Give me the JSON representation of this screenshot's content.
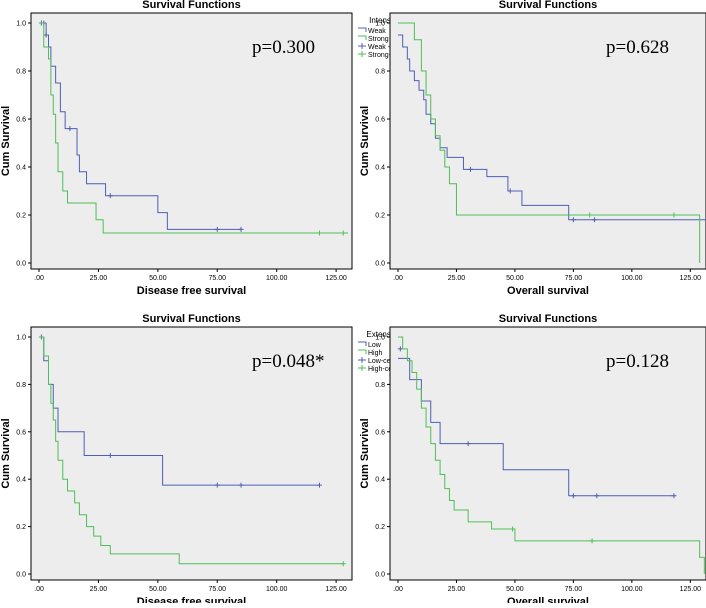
{
  "colors": {
    "series1": "#4f5fb5",
    "series2": "#4fbf57",
    "plot_bg": "#ededed",
    "axis": "#000000"
  },
  "chart_data": [
    {
      "type": "line",
      "title": "Survival Functions",
      "xlabel": "Disease free survival",
      "ylabel": "Cum Survival",
      "xlim": [
        0,
        130
      ],
      "ylim": [
        0,
        1.0
      ],
      "xticks": [
        ".00",
        "25.00",
        "50.00",
        "75.00",
        "100.00",
        "125.00"
      ],
      "yticks": [
        "0.0",
        "0.2",
        "0.4",
        "0.6",
        "0.8",
        "1.0"
      ],
      "annotation": "p=0.300",
      "legend_title": "Intensity",
      "legend": [
        "Weak",
        "Strong",
        "Weak -censored",
        "Strong-censored"
      ],
      "series": [
        {
          "name": "Weak",
          "color": "#4f5fb5",
          "steps": [
            [
              0,
              1.0
            ],
            [
              3,
              0.95
            ],
            [
              4,
              0.9
            ],
            [
              5,
              0.82
            ],
            [
              7,
              0.75
            ],
            [
              9,
              0.63
            ],
            [
              11,
              0.56
            ],
            [
              16,
              0.45
            ],
            [
              17,
              0.38
            ],
            [
              20,
              0.33
            ],
            [
              28,
              0.28
            ],
            [
              37,
              0.28
            ],
            [
              50,
              0.21
            ],
            [
              54,
              0.14
            ],
            [
              85,
              0.14
            ]
          ],
          "censored": [
            [
              1,
              1.0
            ],
            [
              2,
              1.0
            ],
            [
              3,
              0.95
            ],
            [
              13,
              0.56
            ],
            [
              30,
              0.28
            ],
            [
              75,
              0.14
            ],
            [
              85,
              0.14
            ]
          ]
        },
        {
          "name": "Strong",
          "color": "#4fbf57",
          "steps": [
            [
              0,
              1.0
            ],
            [
              2,
              0.9
            ],
            [
              4,
              0.85
            ],
            [
              5,
              0.7
            ],
            [
              6,
              0.62
            ],
            [
              7,
              0.5
            ],
            [
              8,
              0.38
            ],
            [
              10,
              0.3
            ],
            [
              12,
              0.25
            ],
            [
              24,
              0.18
            ],
            [
              27,
              0.125
            ],
            [
              130,
              0.125
            ]
          ],
          "censored": [
            [
              118,
              0.125
            ],
            [
              128,
              0.125
            ]
          ]
        }
      ]
    },
    {
      "type": "line",
      "title": "Survival Functions",
      "xlabel": "Overall survival",
      "ylabel": "Cum Survival",
      "xlim": [
        0,
        130
      ],
      "ylim": [
        0,
        1.0
      ],
      "xticks": [
        ".00",
        "25.00",
        "50.00",
        "75.00",
        "100.00",
        "125.00"
      ],
      "yticks": [
        "0.0",
        "0.2",
        "0.4",
        "0.6",
        "0.8",
        "1.0"
      ],
      "annotation": "p=0.628",
      "legend_title": "Intensity",
      "legend": [
        "Weak",
        "Strong",
        "Weak -censored",
        "Strong-censored"
      ],
      "series": [
        {
          "name": "Weak",
          "color": "#4f5fb5",
          "steps": [
            [
              0,
              0.95
            ],
            [
              2,
              0.9
            ],
            [
              4,
              0.85
            ],
            [
              5,
              0.8
            ],
            [
              7,
              0.76
            ],
            [
              9,
              0.72
            ],
            [
              11,
              0.68
            ],
            [
              12,
              0.62
            ],
            [
              14,
              0.58
            ],
            [
              16,
              0.52
            ],
            [
              18,
              0.48
            ],
            [
              21,
              0.44
            ],
            [
              28,
              0.39
            ],
            [
              38,
              0.36
            ],
            [
              47,
              0.3
            ],
            [
              53,
              0.24
            ],
            [
              73,
              0.18
            ],
            [
              132,
              0.18
            ],
            [
              132,
              0.0
            ]
          ],
          "censored": [
            [
              31,
              0.39
            ],
            [
              48,
              0.3
            ],
            [
              75,
              0.18
            ],
            [
              84,
              0.18
            ]
          ]
        },
        {
          "name": "Strong",
          "color": "#4fbf57",
          "steps": [
            [
              0,
              1.0
            ],
            [
              7,
              0.93
            ],
            [
              10,
              0.8
            ],
            [
              12,
              0.7
            ],
            [
              14,
              0.6
            ],
            [
              16,
              0.53
            ],
            [
              18,
              0.47
            ],
            [
              20,
              0.4
            ],
            [
              22,
              0.33
            ],
            [
              25,
              0.2
            ],
            [
              129,
              0.2
            ],
            [
              129,
              0.0
            ]
          ],
          "censored": [
            [
              82,
              0.2
            ],
            [
              118,
              0.2
            ]
          ]
        }
      ]
    },
    {
      "type": "line",
      "title": "Survival Functions",
      "xlabel": "Disease free survival",
      "ylabel": "Cum Survival",
      "xlim": [
        0,
        130
      ],
      "ylim": [
        0,
        1.0
      ],
      "xticks": [
        ".00",
        "25.00",
        "50.00",
        "75.00",
        "100.00",
        "125.00"
      ],
      "yticks": [
        "0.0",
        "0.2",
        "0.4",
        "0.6",
        "0.8",
        "1.0"
      ],
      "annotation": "p=0.048*",
      "legend_title": "Extension",
      "legend": [
        "Low",
        "High",
        "Low-censored",
        "High-censore"
      ],
      "series": [
        {
          "name": "Low",
          "color": "#4f5fb5",
          "steps": [
            [
              0,
              1.0
            ],
            [
              2,
              0.9
            ],
            [
              4,
              0.8
            ],
            [
              6,
              0.7
            ],
            [
              8,
              0.6
            ],
            [
              19,
              0.5
            ],
            [
              52,
              0.375
            ],
            [
              118,
              0.375
            ]
          ],
          "censored": [
            [
              1,
              1.0
            ],
            [
              30,
              0.5
            ],
            [
              75,
              0.375
            ],
            [
              85,
              0.375
            ],
            [
              118,
              0.375
            ]
          ]
        },
        {
          "name": "High",
          "color": "#4fbf57",
          "steps": [
            [
              0,
              1.0
            ],
            [
              2,
              0.92
            ],
            [
              4,
              0.8
            ],
            [
              5,
              0.72
            ],
            [
              6,
              0.65
            ],
            [
              7,
              0.56
            ],
            [
              8,
              0.48
            ],
            [
              10,
              0.4
            ],
            [
              12,
              0.35
            ],
            [
              15,
              0.3
            ],
            [
              17,
              0.25
            ],
            [
              20,
              0.2
            ],
            [
              23,
              0.16
            ],
            [
              26,
              0.12
            ],
            [
              30,
              0.085
            ],
            [
              59,
              0.043
            ],
            [
              128,
              0.043
            ]
          ],
          "censored": [
            [
              128,
              0.043
            ]
          ]
        }
      ]
    },
    {
      "type": "line",
      "title": "Survival Functions",
      "xlabel": "Overall survival",
      "ylabel": "Cum Survival",
      "xlim": [
        0,
        130
      ],
      "ylim": [
        0,
        1.0
      ],
      "xticks": [
        ".00",
        "25.00",
        "50.00",
        "75.00",
        "100.00",
        "125.00"
      ],
      "yticks": [
        "0.0",
        "0.2",
        "0.4",
        "0.6",
        "0.8",
        "1.0"
      ],
      "annotation": "p=0.128",
      "legend_title": "Extension",
      "legend": [
        "Low",
        "High",
        "Low-censored",
        "High-censored"
      ],
      "series": [
        {
          "name": "Low",
          "color": "#4f5fb5",
          "steps": [
            [
              0,
              0.91
            ],
            [
              4,
              0.91
            ],
            [
              5,
              0.82
            ],
            [
              10,
              0.73
            ],
            [
              14,
              0.64
            ],
            [
              18,
              0.55
            ],
            [
              35,
              0.55
            ],
            [
              45,
              0.44
            ],
            [
              73,
              0.33
            ],
            [
              118,
              0.33
            ]
          ],
          "censored": [
            [
              1,
              0.95
            ],
            [
              30,
              0.55
            ],
            [
              75,
              0.33
            ],
            [
              85,
              0.33
            ],
            [
              118,
              0.33
            ]
          ]
        },
        {
          "name": "High",
          "color": "#4fbf57",
          "steps": [
            [
              0,
              1.0
            ],
            [
              2,
              0.95
            ],
            [
              4,
              0.9
            ],
            [
              6,
              0.85
            ],
            [
              8,
              0.78
            ],
            [
              10,
              0.7
            ],
            [
              12,
              0.62
            ],
            [
              14,
              0.55
            ],
            [
              16,
              0.48
            ],
            [
              18,
              0.42
            ],
            [
              20,
              0.36
            ],
            [
              22,
              0.31
            ],
            [
              24,
              0.27
            ],
            [
              30,
              0.22
            ],
            [
              40,
              0.19
            ],
            [
              50,
              0.14
            ],
            [
              129,
              0.14
            ],
            [
              129,
              0.07
            ],
            [
              131,
              0.07
            ],
            [
              131,
              0.0
            ]
          ],
          "censored": [
            [
              49,
              0.19
            ],
            [
              83,
              0.14
            ]
          ]
        }
      ]
    }
  ]
}
